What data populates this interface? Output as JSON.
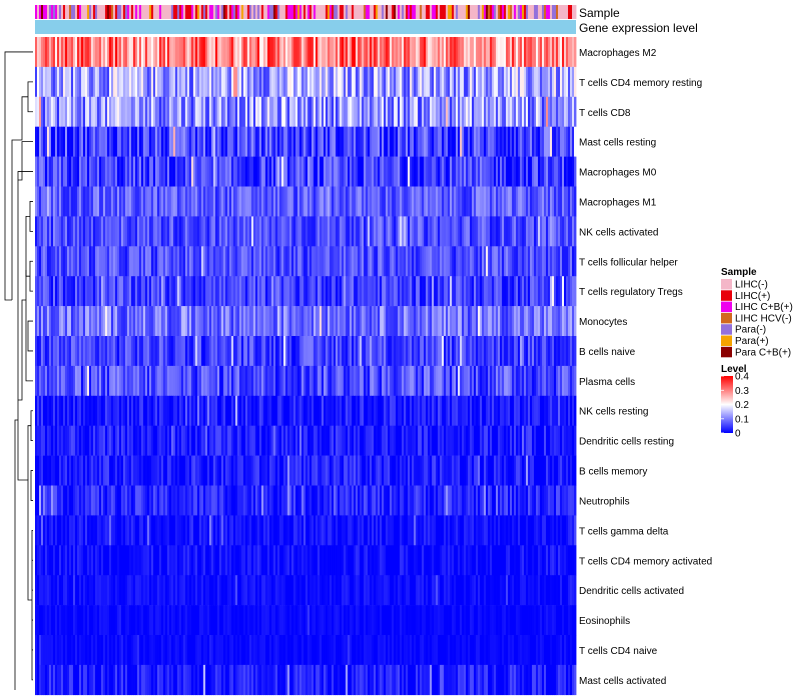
{
  "chart_data": {
    "type": "heatmap",
    "annotation_labels": [
      "Sample",
      "Gene expression level"
    ],
    "rows": [
      {
        "label": "Macrophages M2",
        "mean": 0.3,
        "spread": 0.1
      },
      {
        "label": "T cells CD4 memory resting",
        "mean": 0.13,
        "spread": 0.09
      },
      {
        "label": "T cells CD8",
        "mean": 0.12,
        "spread": 0.09
      },
      {
        "label": "Mast cells resting",
        "mean": 0.05,
        "spread": 0.07
      },
      {
        "label": "Macrophages M0",
        "mean": 0.04,
        "spread": 0.07
      },
      {
        "label": "Macrophages M1",
        "mean": 0.07,
        "spread": 0.05
      },
      {
        "label": "NK cells activated",
        "mean": 0.06,
        "spread": 0.05
      },
      {
        "label": "T cells follicular helper",
        "mean": 0.06,
        "spread": 0.05
      },
      {
        "label": "T cells regulatory  Tregs",
        "mean": 0.05,
        "spread": 0.05
      },
      {
        "label": "Monocytes",
        "mean": 0.09,
        "spread": 0.06
      },
      {
        "label": "B cells naive",
        "mean": 0.05,
        "spread": 0.05
      },
      {
        "label": "Plasma cells",
        "mean": 0.06,
        "spread": 0.06
      },
      {
        "label": "NK cells resting",
        "mean": 0.02,
        "spread": 0.04
      },
      {
        "label": "Dendritic cells resting",
        "mean": 0.02,
        "spread": 0.04
      },
      {
        "label": "B cells memory",
        "mean": 0.02,
        "spread": 0.04
      },
      {
        "label": "Neutrophils",
        "mean": 0.03,
        "spread": 0.04
      },
      {
        "label": "T cells gamma delta",
        "mean": 0.01,
        "spread": 0.03
      },
      {
        "label": "T cells CD4 memory activated",
        "mean": 0.01,
        "spread": 0.03
      },
      {
        "label": "Dendritic cells activated",
        "mean": 0.01,
        "spread": 0.02
      },
      {
        "label": "Eosinophils",
        "mean": 0.005,
        "spread": 0.015
      },
      {
        "label": "T cells CD4 naive",
        "mean": 0.005,
        "spread": 0.015
      },
      {
        "label": "Mast cells activated",
        "mean": 0.02,
        "spread": 0.04
      }
    ],
    "n_samples": 270,
    "sample_legend": {
      "title": "Sample",
      "items": [
        {
          "label": "LIHC(-)",
          "color": "#f4b6c8"
        },
        {
          "label": "LIHC(+)",
          "color": "#e8000b"
        },
        {
          "label": "LIHC C+B(+)",
          "color": "#ee00ee"
        },
        {
          "label": "LIHC HCV(-)",
          "color": "#d2691e"
        },
        {
          "label": "Para(-)",
          "color": "#9370db"
        },
        {
          "label": "Para(+)",
          "color": "#f5a300"
        },
        {
          "label": "Para C+B(+)",
          "color": "#8b0000"
        }
      ]
    },
    "level_legend": {
      "title": "Level",
      "ticks": [
        "0.4",
        "0.3",
        "0.2",
        "0.1",
        "0"
      ],
      "range": [
        0,
        0.4
      ],
      "colors": [
        "#0000ff",
        "#ffffff",
        "#ff0000"
      ]
    },
    "gene_expression_color": "#87ceeb"
  }
}
